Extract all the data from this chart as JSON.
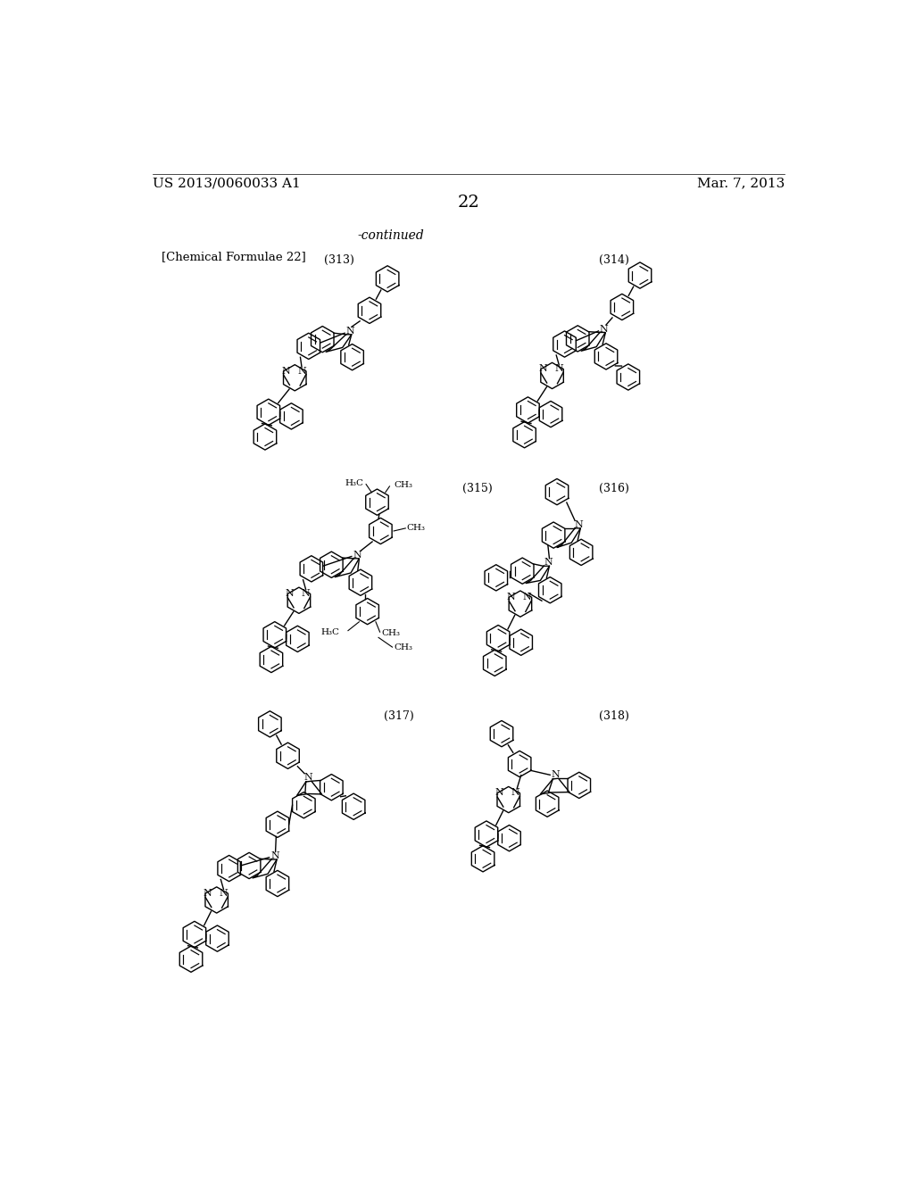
{
  "background_color": "#ffffff",
  "header_left": "US 2013/0060033 A1",
  "header_right": "Mar. 7, 2013",
  "page_number": "22",
  "continued_text": "-continued",
  "chemical_formulae_label": "[Chemical Formulae 22]",
  "compound_labels": [
    "(313)",
    "(314)",
    "(315)",
    "(316)",
    "(317)",
    "(318)"
  ]
}
